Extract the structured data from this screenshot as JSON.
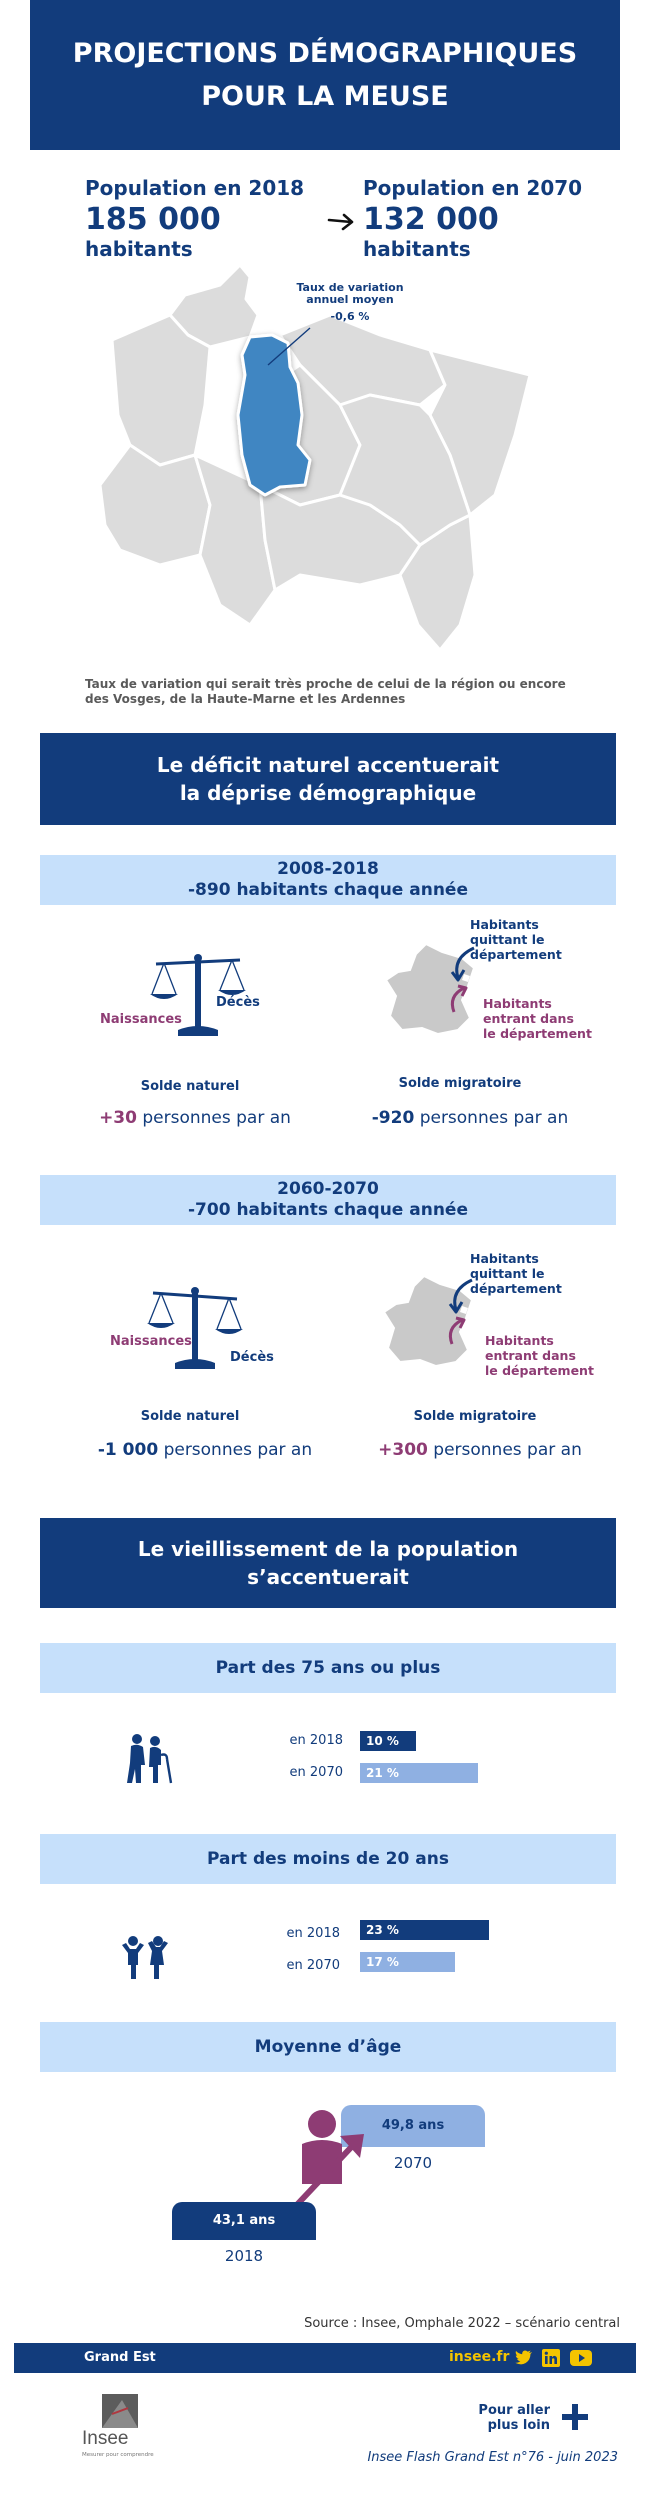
{
  "header": {
    "title_line1": "PROJECTIONS DÉMOGRAPHIQUES",
    "title_line2": "POUR LA MEUSE"
  },
  "population": {
    "label_2018": "Population en 2018",
    "value_2018": "185 000",
    "label_2070": "Population en 2070",
    "value_2070": "132 000",
    "unit": "habitants"
  },
  "map": {
    "callout_line1": "Taux de variation",
    "callout_line2": "annuel moyen",
    "callout_value": "-0,6 %",
    "caption_line1": "Taux de variation qui serait très proche de celui de la région ou encore",
    "caption_line2": "des Vosges, de la Haute-Marne et les Ardennes",
    "colors": {
      "region": "#dcdcdc",
      "meuse": "#3f86c2",
      "border": "#ffffff"
    }
  },
  "section1": {
    "title_line1": "Le déficit naturel accentuerait",
    "title_line2": "la déprise démographique"
  },
  "period1": {
    "title_line1": "2008-2018",
    "title_line2": "-890 habitants chaque année",
    "births_label": "Naissances",
    "deaths_label": "Décès",
    "leaving_label": [
      "Habitants",
      "quittant le",
      "département"
    ],
    "entering_label": [
      "Habitants",
      "entrant dans",
      "le département"
    ],
    "natural_label": "Solde naturel",
    "migration_label": "Solde migratoire",
    "natural_value": "+30",
    "migration_value": "-920",
    "per_year": "personnes par an"
  },
  "period2": {
    "title_line1": "2060-2070",
    "title_line2": "-700 habitants chaque année",
    "births_label": "Naissances",
    "deaths_label": "Décès",
    "leaving_label": [
      "Habitants",
      "quittant le",
      "département"
    ],
    "entering_label": [
      "Habitants",
      "entrant dans",
      "le département"
    ],
    "natural_label": "Solde naturel",
    "migration_label": "Solde migratoire",
    "natural_value": "-1 000",
    "migration_value": "+300",
    "per_year": "personnes par an"
  },
  "section2": {
    "title_line1": "Le vieillissement de la population",
    "title_line2": "s’accentuerait"
  },
  "share75": {
    "title": "Part des 75 ans ou plus",
    "year_2018": "en 2018",
    "year_2070": "en 2070",
    "value_2018": "10 %",
    "value_2070": "21 %",
    "frac_2018": 0.1,
    "frac_2070": 0.21
  },
  "share20": {
    "title": "Part des moins de 20 ans",
    "year_2018": "en 2018",
    "year_2070": "en 2070",
    "value_2018": "23 %",
    "value_2070": "17 %",
    "frac_2018": 0.23,
    "frac_2070": 0.17
  },
  "mean_age": {
    "title": "Moyenne d’âge",
    "value_2018": "43,1 ans",
    "value_2070": "49,8 ans",
    "year_2018": "2018",
    "year_2070": "2070"
  },
  "footer": {
    "source": "Source :  Insee, Omphale 2022 – scénario central",
    "region": "Grand Est",
    "site": "insee.fr",
    "social_icons": [
      "twitter-icon",
      "linkedin-icon",
      "youtube-icon"
    ],
    "logo_text": "Insee",
    "logo_tagline": "Mesurer pour comprendre",
    "more_line1": "Pour aller",
    "more_line2": "plus loin",
    "publication": "Insee Flash Grand Est n°76 - juin 2023"
  },
  "colors": {
    "navy": "#123c7c",
    "light_blue": "#c6e0fb",
    "purple": "#8e3c74",
    "bar_light": "#8fb0e2",
    "yellow": "#f4c400"
  }
}
